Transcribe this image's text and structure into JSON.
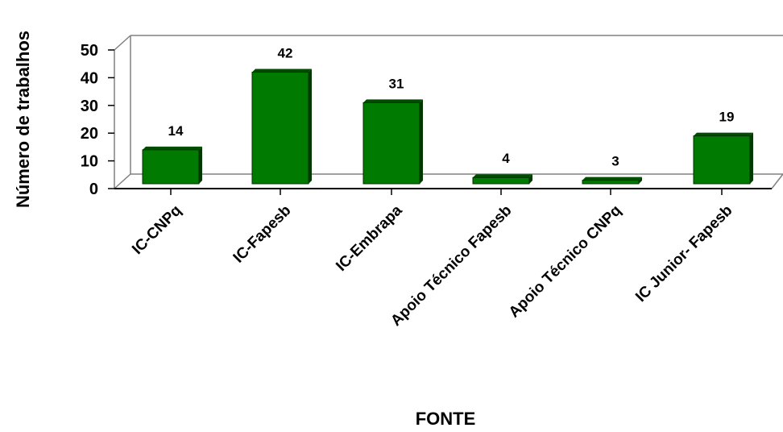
{
  "chart_data": {
    "type": "bar",
    "style": "3d",
    "categories": [
      "IC-CNPq",
      "IC-Fapesb",
      "IC-Embrapa",
      "Apoio Técnico Fapesb",
      "Apoio Técnico CNPq",
      "IC Junior- Fapesb"
    ],
    "values": [
      14,
      42,
      31,
      4,
      3,
      19
    ],
    "data_labels": [
      "14",
      "42",
      "31",
      "4",
      "3",
      "19"
    ],
    "xlabel": "FONTE",
    "ylabel": "Número de trabalhos",
    "ylim": [
      0,
      50
    ],
    "yticks": [
      "0",
      "10",
      "20",
      "30",
      "40",
      "50"
    ],
    "grid": false,
    "legend": "none",
    "colors": {
      "bar_front": "#007a00",
      "bar_top": "#004d00",
      "bar_side": "#003800",
      "frame": "#808080"
    }
  }
}
